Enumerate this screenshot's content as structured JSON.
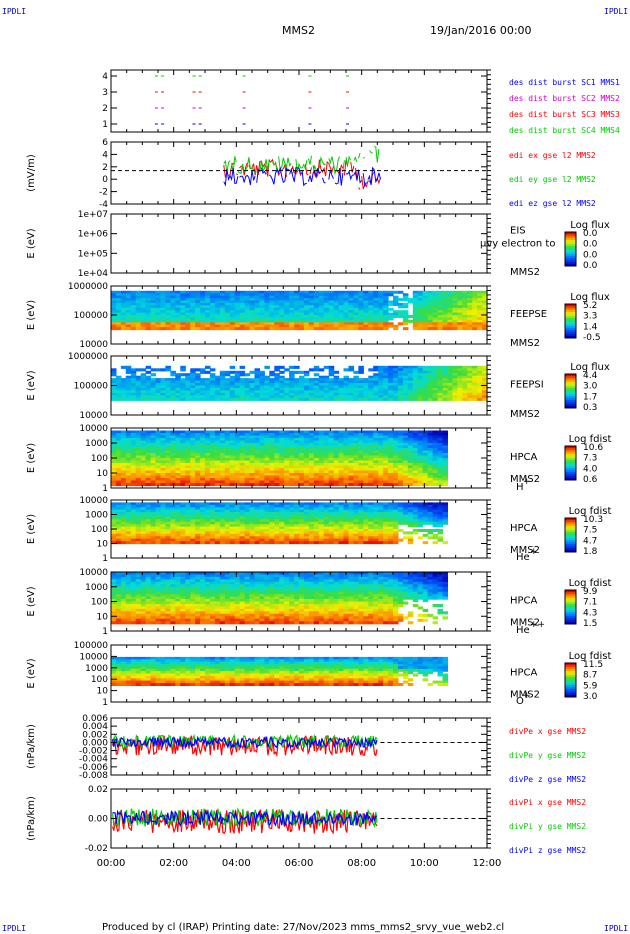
{
  "corner_label": "IPDLI",
  "header": {
    "spacecraft": "MMS2",
    "date": "19/Jan/2016 00:00"
  },
  "footer": {
    "text": "Produced by cl (IRAP)   Printing date: 27/Nov/2023   mms_mms2_srvy_vue_web2.cl"
  },
  "colors": {
    "red": "#ff0000",
    "green": "#00cc00",
    "blue": "#0000ff",
    "magenta": "#cc00cc"
  },
  "chart_data": {
    "type": "line",
    "x_ticks": [
      "00:00",
      "02:00",
      "04:00",
      "06:00",
      "08:00",
      "10:00",
      "12:00"
    ],
    "panels": [
      {
        "id": "burst",
        "type": "scatter",
        "ylabel": "",
        "yticks": [
          "4",
          "3",
          "2",
          "1"
        ],
        "legend": [
          {
            "text": "des dist burst SC1 MMS1",
            "color": "#0000ff"
          },
          {
            "text": "des dist burst SC2 MMS2",
            "color": "#cc00cc"
          },
          {
            "text": "des dist burst SC3 MMS3",
            "color": "#ff0000"
          },
          {
            "text": "des dist burst SC4 MMS4",
            "color": "#00cc00"
          }
        ]
      },
      {
        "id": "edi",
        "type": "line",
        "ylabel": "(mV/m)",
        "yticks": [
          "6",
          "4",
          "2",
          "0",
          "-2",
          "-4"
        ],
        "legend": [
          {
            "text": "edi ex gse l2 MMS2",
            "color": "#ff0000"
          },
          {
            "text": "edi ey gse l2 MMS2",
            "color": "#00cc00"
          },
          {
            "text": "edi ez gse l2 MMS2",
            "color": "#0000ff"
          }
        ]
      },
      {
        "id": "eis",
        "type": "heatmap",
        "ylabel": "E (eV)",
        "yticks": [
          "1e+07",
          "1e+06",
          "1e+05",
          "1e+04"
        ],
        "labels": [
          "EIS",
          "MMS2"
        ],
        "overlay": "µvy electron to",
        "colorbar_title": "Log flux",
        "colorbar_ticks": [
          "0.0",
          "0.0",
          "0.0",
          "0.0"
        ]
      },
      {
        "id": "feepse",
        "type": "heatmap",
        "ylabel": "E (eV)",
        "yticks": [
          "1000000",
          "100000",
          "10000"
        ],
        "labels": [
          "FEEPSE",
          "MMS2"
        ],
        "colorbar_title": "Log flux",
        "colorbar_ticks": [
          "5.2",
          "3.3",
          "1.4",
          "-0.5"
        ]
      },
      {
        "id": "feepsi",
        "type": "heatmap",
        "ylabel": "E (eV)",
        "yticks": [
          "1000000",
          "100000",
          "10000"
        ],
        "labels": [
          "FEEPSI",
          "MMS2"
        ],
        "colorbar_title": "Log flux",
        "colorbar_ticks": [
          "4.4",
          "3.0",
          "1.7",
          "0.3"
        ]
      },
      {
        "id": "hpca_h",
        "type": "heatmap",
        "ylabel": "E (eV)",
        "yticks": [
          "10000",
          "1000",
          "100",
          "10",
          "1"
        ],
        "labels": [
          "HPCA",
          "MMS2"
        ],
        "species": "H",
        "species_sup": "+",
        "colorbar_title": "Log fdist",
        "colorbar_ticks": [
          "10.6",
          "7.3",
          "4.0",
          "0.6"
        ]
      },
      {
        "id": "hpca_he",
        "type": "heatmap",
        "ylabel": "E (eV)",
        "yticks": [
          "10000",
          "1000",
          "100",
          "10",
          "1"
        ],
        "labels": [
          "HPCA",
          "MMS2"
        ],
        "species": "He",
        "species_sup": "+",
        "colorbar_title": "Log fdist",
        "colorbar_ticks": [
          "10.3",
          "7.5",
          "4.7",
          "1.8"
        ]
      },
      {
        "id": "hpca_hepp",
        "type": "heatmap",
        "ylabel": "E (eV)",
        "yticks": [
          "10000",
          "1000",
          "100",
          "10",
          "1"
        ],
        "labels": [
          "HPCA",
          "MMS2"
        ],
        "species": "He",
        "species_sup": "++",
        "colorbar_title": "Log fdist",
        "colorbar_ticks": [
          "9.9",
          "7.1",
          "4.3",
          "1.5"
        ]
      },
      {
        "id": "hpca_o",
        "type": "heatmap",
        "ylabel": "E (eV)",
        "yticks": [
          "100000",
          "10000",
          "1000",
          "100",
          "10",
          "1"
        ],
        "labels": [
          "HPCA",
          "MMS2"
        ],
        "species": "O",
        "species_sup": "+",
        "colorbar_title": "Log fdist",
        "colorbar_ticks": [
          "11.5",
          "8.7",
          "5.9",
          "3.0"
        ]
      },
      {
        "id": "divpe",
        "type": "line",
        "ylabel": "(nPa/km)",
        "yticks": [
          "0.006",
          "0.004",
          "0.002",
          "0.000",
          "-0.002",
          "-0.004",
          "-0.006",
          "-0.008"
        ],
        "legend": [
          {
            "text": "divPe x gse MMS2",
            "color": "#ff0000"
          },
          {
            "text": "divPe y gse MMS2",
            "color": "#00cc00"
          },
          {
            "text": "divPe z gse MMS2",
            "color": "#0000ff"
          }
        ]
      },
      {
        "id": "divpi",
        "type": "line",
        "ylabel": "(nPa/km)",
        "yticks": [
          "0.02",
          "0.00",
          "-0.02"
        ],
        "legend": [
          {
            "text": "divPi x gse MMS2",
            "color": "#ff0000"
          },
          {
            "text": "divPi y gse MMS2",
            "color": "#00cc00"
          },
          {
            "text": "divPi z gse MMS2",
            "color": "#0000ff"
          }
        ]
      }
    ]
  }
}
